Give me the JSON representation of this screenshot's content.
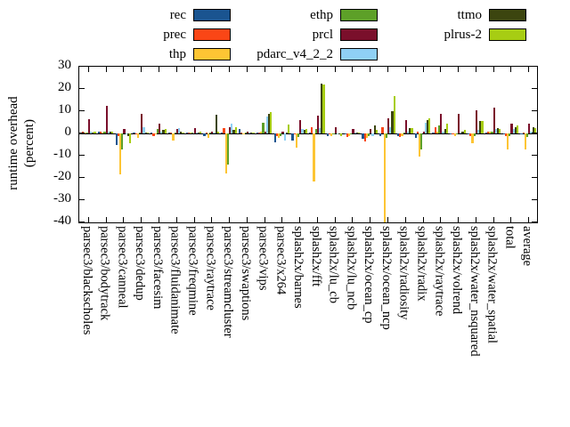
{
  "chart_data": {
    "type": "bar",
    "title": "",
    "ylabel": "runtime overhead (percent)",
    "ylabel_lines": [
      "runtime overhead",
      "(percent)"
    ],
    "ylim": [
      -40,
      30
    ],
    "yticks": [
      30,
      20,
      10,
      0,
      -10,
      -20,
      -30,
      -40
    ],
    "grid": false,
    "legend_position": "top-center, 3 columns",
    "categories": [
      "parsec3/blackscholes",
      "parsec3/bodytrack",
      "parsec3/canneal",
      "parsec3/dedup",
      "parsec3/facesim",
      "parsec3/fluidanimate",
      "parsec3/freqmine",
      "parsec3/raytrace",
      "parsec3/streamcluster",
      "parsec3/swaptions",
      "parsec3/vips",
      "parsec3/x264",
      "splash2x/barnes",
      "splash2x/fft",
      "splash2x/lu_cb",
      "splash2x/lu_ncb",
      "splash2x/ocean_cp",
      "splash2x/ocean_ncp",
      "splash2x/radiosity",
      "splash2x/radix",
      "splash2x/raytrace",
      "splash2x/volrend",
      "splash2x/water_nsquared",
      "splash2x/water_spatial",
      "total",
      "average"
    ],
    "series": [
      {
        "name": "rec",
        "color": "#1a5490",
        "values": [
          0.5,
          1,
          -5,
          0.5,
          0.5,
          0.5,
          0.5,
          -1,
          0.5,
          2,
          0.5,
          -4,
          -3,
          0.5,
          -1,
          -0.5,
          -2.5,
          -1,
          -1,
          -2,
          0.5,
          -0.5,
          -0.5,
          0.5,
          -0.5,
          -0.5
        ]
      },
      {
        "name": "prec",
        "color": "#fa4616",
        "values": [
          1,
          1,
          -1,
          -0.5,
          -1,
          0.5,
          0.5,
          0.5,
          2.5,
          0.5,
          0.5,
          -1,
          -0.5,
          3,
          -0.5,
          -1.5,
          -3.5,
          3,
          -1.5,
          1,
          3,
          -0.5,
          -1,
          1,
          -1,
          0.5
        ]
      },
      {
        "name": "thp",
        "color": "#fdc534",
        "values": [
          0.5,
          0.5,
          -18.5,
          -2,
          -0.5,
          -3,
          0.5,
          -2,
          -18,
          -0.5,
          1,
          -2,
          -6.5,
          -21.5,
          -1,
          -1,
          -2,
          -40,
          -1,
          -10.5,
          1,
          -1,
          -4.5,
          1,
          -7,
          -7
        ]
      },
      {
        "name": "ethp",
        "color": "#5da028",
        "values": [
          0.5,
          1,
          -7,
          0.5,
          2,
          0.5,
          0.5,
          0.5,
          -14,
          0.5,
          5,
          -1,
          -1.5,
          2,
          -0.5,
          -0.5,
          -1,
          -2,
          0.5,
          -7,
          3.5,
          -0.5,
          -1,
          1,
          -1,
          -1.5
        ]
      },
      {
        "name": "prcl",
        "color": "#7a0f2b",
        "values": [
          6.5,
          12.5,
          2,
          9,
          4.5,
          2,
          2.5,
          1,
          3,
          1,
          1,
          1,
          6,
          8,
          3,
          2,
          2,
          7,
          6,
          1,
          9,
          9,
          10.5,
          11.5,
          4.5,
          4.5
        ]
      },
      {
        "name": "pdarc_v4_2_2",
        "color": "#8fd0f5",
        "values": [
          1,
          1,
          -0.5,
          3,
          1,
          2.5,
          0.5,
          0.5,
          4.5,
          0.5,
          7.5,
          -3,
          2,
          2.5,
          -0.5,
          0.5,
          -1,
          3,
          1,
          5,
          1,
          0.5,
          1.5,
          2,
          2,
          1
        ]
      },
      {
        "name": "ttmo",
        "color": "#3c450f",
        "values": [
          0.5,
          1,
          -1,
          0.5,
          1.5,
          1,
          0.5,
          8.5,
          1.5,
          0.5,
          9,
          0.5,
          1.5,
          22.5,
          -0.5,
          0.5,
          3.5,
          10,
          2.5,
          6,
          2,
          1,
          5.5,
          2.5,
          3,
          3
        ]
      },
      {
        "name": "plrus-2",
        "color": "#a7cd13",
        "values": [
          1,
          1,
          -4.5,
          0.5,
          2,
          0.5,
          1,
          1,
          3,
          0.5,
          9.5,
          4,
          2,
          22,
          -1,
          0.5,
          1.5,
          17,
          2.5,
          7,
          4.5,
          1.5,
          5.5,
          2,
          3.5,
          2.5
        ]
      }
    ]
  },
  "legend": {
    "columns": [
      [
        0,
        1,
        2
      ],
      [
        3,
        4,
        5
      ],
      [
        6,
        7
      ]
    ]
  }
}
